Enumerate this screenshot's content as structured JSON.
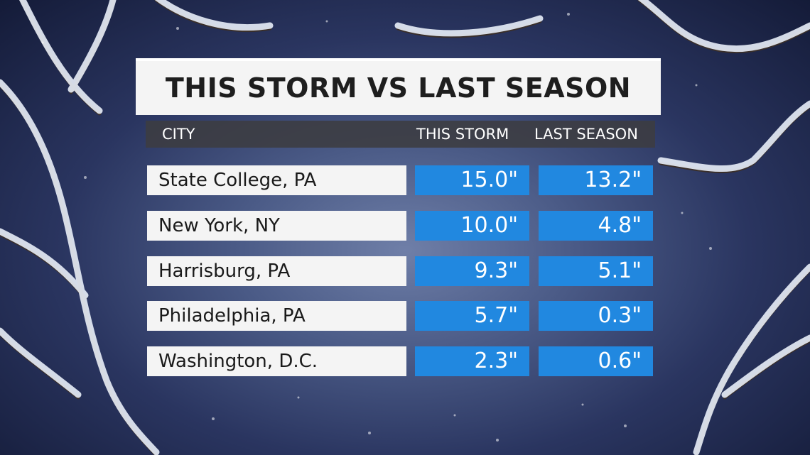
{
  "chart_data": {
    "type": "table",
    "title": "THIS STORM VS LAST SEASON",
    "columns": [
      "CITY",
      "THIS STORM",
      "LAST SEASON"
    ],
    "rows": [
      {
        "city": "State College, PA",
        "this_storm": "15.0\"",
        "last_season": "13.2\""
      },
      {
        "city": "New York, NY",
        "this_storm": "10.0\"",
        "last_season": "4.8\""
      },
      {
        "city": "Harrisburg, PA",
        "this_storm": "9.3\"",
        "last_season": "5.1\""
      },
      {
        "city": "Philadelphia, PA",
        "this_storm": "5.7\"",
        "last_season": "0.3\""
      },
      {
        "city": "Washington, D.C.",
        "this_storm": "2.3\"",
        "last_season": "0.6\""
      }
    ]
  },
  "colors": {
    "value_cell": "#2188e0",
    "city_cell": "#f4f4f4",
    "header_bar": "#3c3c41"
  }
}
